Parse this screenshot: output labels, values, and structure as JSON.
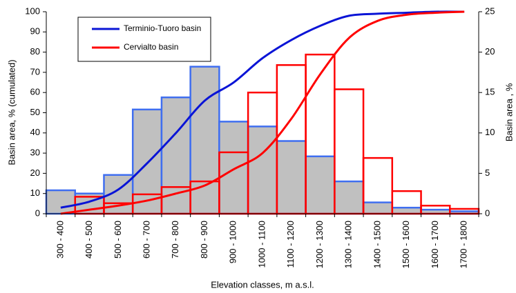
{
  "chart_data": {
    "type": "combo",
    "xlabel": "Elevation classes, m a.s.l.",
    "ylabel": "Basin area, %   (cumulated)",
    "y2label": "Basin area , %",
    "categories": [
      "300 - 400",
      "400 - 500",
      "500 - 600",
      "600 - 700",
      "700 - 800",
      "800 - 900",
      "900 - 1000",
      "1000 - 1100",
      "1100 - 1200",
      "1200 - 1300",
      "1300 - 1400",
      "1400 - 1500",
      "1500 - 1600",
      "1600 - 1700",
      "1700 - 1800"
    ],
    "ylim": [
      0,
      100
    ],
    "yticks": [
      0,
      10,
      20,
      30,
      40,
      50,
      60,
      70,
      80,
      90,
      100
    ],
    "y2lim": [
      0,
      25
    ],
    "y2ticks": [
      0,
      5,
      10,
      15,
      20,
      25
    ],
    "legend": "upper left",
    "series": [
      {
        "type": "bar",
        "axis": "y2",
        "color": "#c0c0c0",
        "edgecolor": "#3f6ef0",
        "values": [
          2.9,
          2.5,
          4.8,
          12.9,
          14.4,
          18.2,
          11.4,
          10.8,
          9.0,
          7.1,
          4.0,
          1.4,
          0.75,
          0.5,
          0.3
        ]
      },
      {
        "type": "bar",
        "axis": "y2",
        "color": "none",
        "edgecolor": "#ff0000",
        "values": [
          0,
          2.1,
          1.3,
          2.4,
          3.3,
          4.0,
          7.6,
          15.0,
          18.4,
          19.7,
          15.4,
          6.9,
          2.8,
          1.0,
          0.6
        ]
      },
      {
        "type": "line",
        "name": "Terminio-Tuoro basin",
        "color": "#0a14d6",
        "values": [
          3,
          6,
          12,
          25,
          40,
          56,
          65,
          77,
          86,
          93,
          98,
          99,
          99.5,
          100,
          100
        ]
      },
      {
        "type": "line",
        "name": "Cervialto basin",
        "color": "#ff0000",
        "values": [
          0,
          2,
          4,
          6.5,
          10,
          14,
          22,
          30,
          47,
          69,
          87,
          95.5,
          98.5,
          99.5,
          100
        ]
      }
    ]
  }
}
